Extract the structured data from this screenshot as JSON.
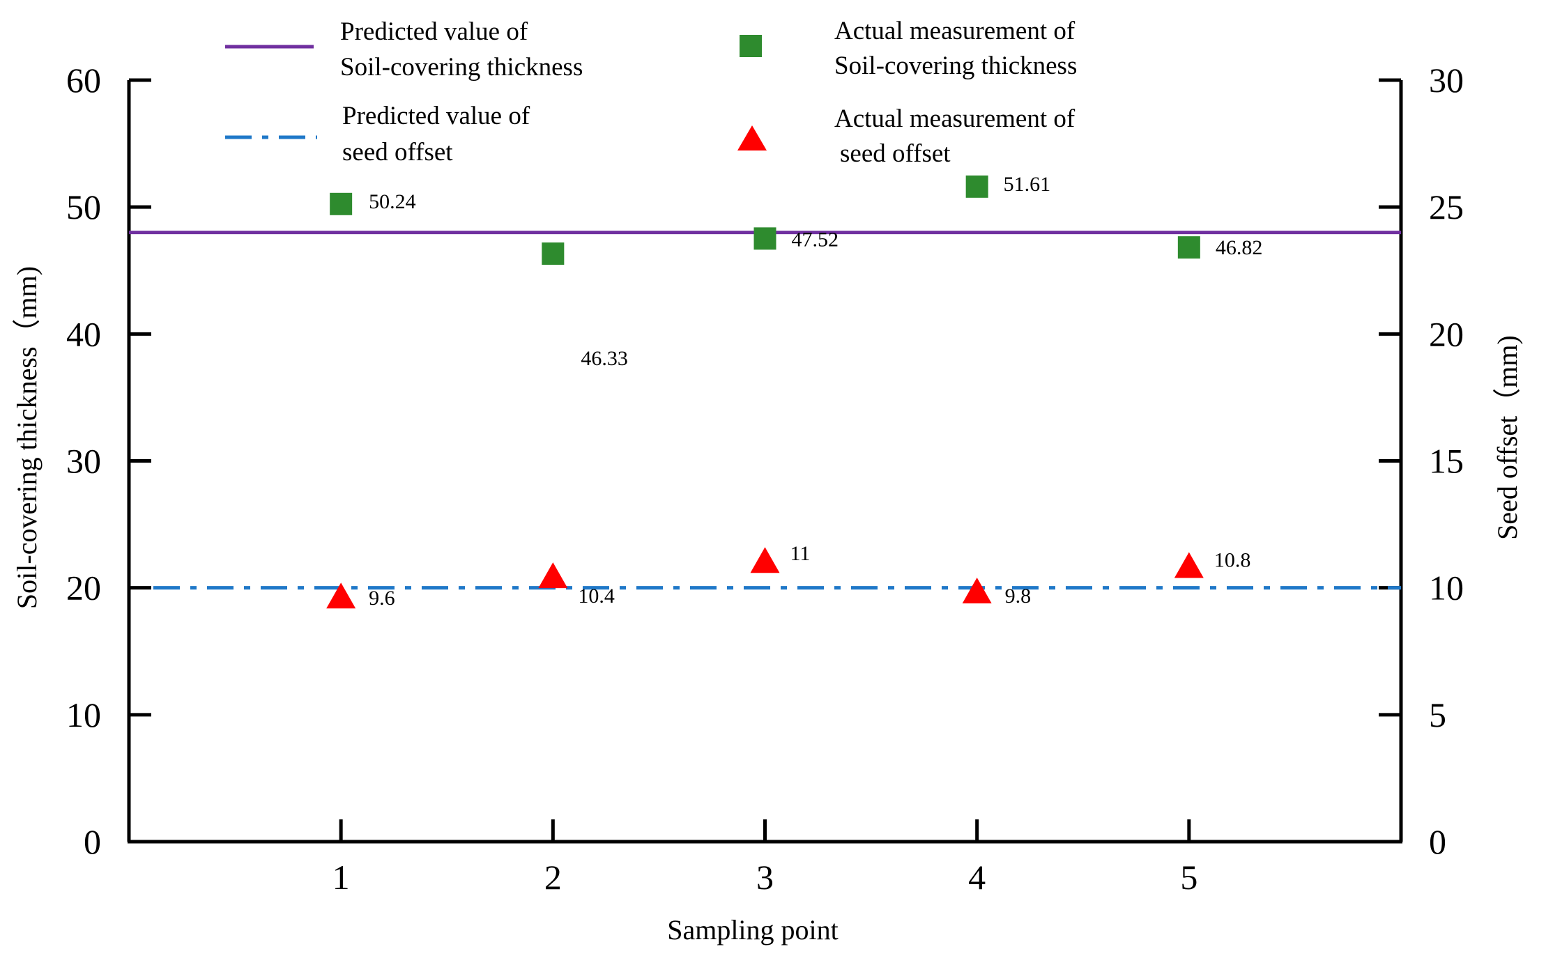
{
  "chart_data": {
    "type": "scatter",
    "xlabel": "Sampling point",
    "ylabel_left": "Soil-covering thickness（mm)",
    "ylabel_right": "Seed offset（mm)",
    "x": [
      1,
      2,
      3,
      4,
      5
    ],
    "xlim": [
      0,
      6
    ],
    "ylim_left": [
      0,
      60
    ],
    "ylim_right": [
      0,
      30
    ],
    "left_ticks": [
      0,
      10,
      20,
      30,
      40,
      50,
      60
    ],
    "right_ticks": [
      0,
      5,
      10,
      15,
      20,
      25,
      30
    ],
    "series": [
      {
        "name": "Predicted value of Soil-covering thickness",
        "legend_lines": [
          "Predicted value of",
          "Soil-covering thickness"
        ],
        "kind": "hline",
        "axis": "left",
        "value": 48,
        "color": "#7030a0"
      },
      {
        "name": "Actual measurement of Soil-covering thickness",
        "legend_lines": [
          "Actual measurement of",
          "Soil-covering thickness"
        ],
        "kind": "square",
        "axis": "left",
        "values": [
          50.24,
          46.33,
          47.52,
          51.61,
          46.82
        ],
        "labels": [
          "50.24",
          "46.33",
          "47.52",
          "51.61",
          "46.82"
        ],
        "color": "#2e8b2e"
      },
      {
        "name": "Predicted value of seed offset",
        "legend_lines": [
          "Predicted value of",
          "seed offset"
        ],
        "kind": "hline-dashdot",
        "axis": "right",
        "value": 10,
        "color": "#1f78c8"
      },
      {
        "name": "Actual measurement of seed offset",
        "legend_lines": [
          "Actual measurement of",
          "seed offset"
        ],
        "kind": "triangle",
        "axis": "right",
        "values": [
          9.6,
          10.4,
          11,
          9.8,
          10.8
        ],
        "labels": [
          "9.6",
          "10.4",
          "11",
          "9.8",
          "10.8"
        ],
        "color": "#ff0000"
      }
    ]
  }
}
